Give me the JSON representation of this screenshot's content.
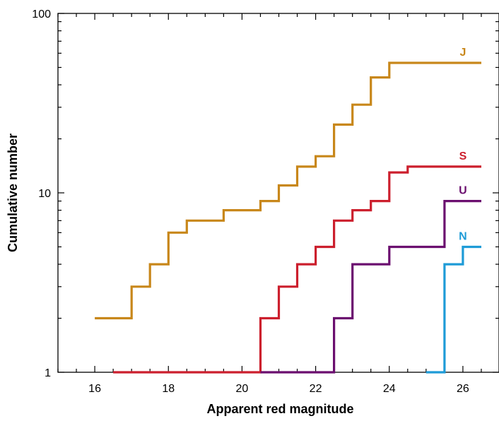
{
  "chart_data": {
    "type": "line",
    "step": true,
    "xlabel": "Apparent red magnitude",
    "ylabel": "Cumulative number",
    "xlim": [
      15,
      27
    ],
    "ylim": [
      1,
      100
    ],
    "yscale": "log",
    "xticks": [
      16,
      18,
      20,
      22,
      24,
      26
    ],
    "xtick_labels": [
      "16",
      "18",
      "20",
      "22",
      "24",
      "26"
    ],
    "yticks": [
      1,
      10,
      100
    ],
    "ytick_labels": [
      "1",
      "10",
      "100"
    ],
    "grid": false,
    "series": [
      {
        "name": "J",
        "color": "#C8871A",
        "x": [
          16,
          17,
          17,
          17.5,
          17.5,
          18,
          18,
          18.5,
          18.5,
          19.5,
          19.5,
          20.5,
          20.5,
          21,
          21,
          21.5,
          21.5,
          22,
          22,
          22.5,
          22.5,
          23,
          23,
          23.5,
          23.5,
          24,
          24,
          26.5
        ],
        "y": [
          2,
          2,
          3,
          3,
          4,
          4,
          6,
          6,
          7,
          7,
          8,
          8,
          9,
          9,
          11,
          11,
          14,
          14,
          16,
          16,
          24,
          24,
          31,
          31,
          44,
          44,
          53,
          53
        ]
      },
      {
        "name": "S",
        "color": "#CC1F2D",
        "x": [
          16.5,
          20.5,
          20.5,
          21,
          21,
          21.5,
          21.5,
          22,
          22,
          22.5,
          22.5,
          23,
          23,
          23.5,
          23.5,
          24,
          24,
          24.5,
          24.5,
          26.5
        ],
        "y": [
          1,
          1,
          2,
          2,
          3,
          3,
          4,
          4,
          5,
          5,
          7,
          7,
          8,
          8,
          9,
          9,
          13,
          13,
          14,
          14
        ]
      },
      {
        "name": "U",
        "color": "#6B0F6F",
        "x": [
          20.5,
          22.5,
          22.5,
          23,
          23,
          24,
          24,
          25.5,
          25.5,
          26.5
        ],
        "y": [
          1,
          1,
          2,
          2,
          4,
          4,
          5,
          5,
          9,
          9
        ]
      },
      {
        "name": "N",
        "color": "#1E9BD7",
        "x": [
          25,
          25.5,
          25.5,
          26,
          26,
          26.5
        ],
        "y": [
          1,
          1,
          4,
          4,
          5,
          5
        ]
      }
    ]
  }
}
